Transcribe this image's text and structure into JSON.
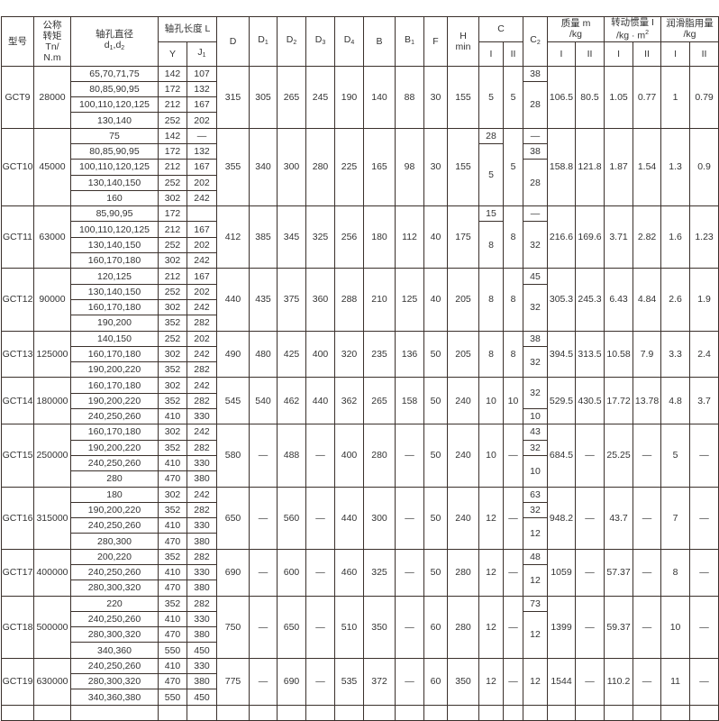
{
  "header": {
    "model": "型号",
    "torque": [
      "公称",
      "转矩",
      "Tn/",
      "N.m"
    ],
    "bore": {
      "title": "轴孔直径",
      "d": "d",
      "s1": "1",
      "comma": ",d",
      "s2": "2"
    },
    "bore_length": "轴孔长度 L",
    "Y": "Y",
    "J1": {
      "base": "J",
      "sub": "1"
    },
    "D": "D",
    "D1": {
      "base": "D",
      "sub": "1"
    },
    "D2": {
      "base": "D",
      "sub": "2"
    },
    "D3": {
      "base": "D",
      "sub": "3"
    },
    "D4": {
      "base": "D",
      "sub": "4"
    },
    "B": "B",
    "B1": {
      "base": "B",
      "sub": "1"
    },
    "F": "F",
    "H": [
      "H",
      "min"
    ],
    "C": "C",
    "C2": {
      "base": "C",
      "sub": "2"
    },
    "mass": [
      "质量 m",
      "/kg"
    ],
    "inertia": [
      "转动惯量 I",
      "/kg · m",
      "2"
    ],
    "grease": [
      "润滑脂用量",
      "/kg"
    ],
    "I": "I",
    "II": "II"
  },
  "rows": [
    {
      "model": "GCT9",
      "Tn": "28000",
      "bores": [
        [
          "65,70,71,75",
          "142",
          "107"
        ],
        [
          "80,85,90,95",
          "172",
          "132"
        ],
        [
          "100,110,120,125",
          "212",
          "167"
        ],
        [
          "130,140",
          "252",
          "202"
        ]
      ],
      "D": "315",
      "D1": "305",
      "D2": "265",
      "D3": "245",
      "D4": "190",
      "B": "140",
      "B1": "88",
      "F": "30",
      "H": "155",
      "CI": [
        [
          "5",
          4
        ]
      ],
      "CII": "5",
      "C2": [
        [
          "38",
          1
        ],
        [
          "28",
          3
        ]
      ],
      "mI": "106.5",
      "mII": "80.5",
      "iI": "1.05",
      "iII": "0.77",
      "gI": "1",
      "gII": "0.79"
    },
    {
      "model": "GCT10",
      "Tn": "45000",
      "bores": [
        [
          "75",
          "142",
          "—"
        ],
        [
          "80,85,90,95",
          "172",
          "132"
        ],
        [
          "100,110,120,125",
          "212",
          "167"
        ],
        [
          "130,140,150",
          "252",
          "202"
        ],
        [
          "160",
          "302",
          "242"
        ]
      ],
      "D": "355",
      "D1": "340",
      "D2": "300",
      "D3": "280",
      "D4": "225",
      "B": "165",
      "B1": "98",
      "F": "30",
      "H": "155",
      "CI": [
        [
          "28",
          1
        ],
        [
          "5",
          4
        ]
      ],
      "CII": "5",
      "C2": [
        [
          "—",
          1
        ],
        [
          "38",
          1
        ],
        [
          "28",
          3
        ]
      ],
      "mI": "158.8",
      "mII": "121.8",
      "iI": "1.87",
      "iII": "1.54",
      "gI": "1.3",
      "gII": "0.9"
    },
    {
      "model": "GCT11",
      "Tn": "63000",
      "bores": [
        [
          "85,90,95",
          "172",
          ""
        ],
        [
          "100,110,120,125",
          "212",
          "167"
        ],
        [
          "130,140,150",
          "252",
          "202"
        ],
        [
          "160,170,180",
          "302",
          "242"
        ]
      ],
      "D": "412",
      "D1": "385",
      "D2": "345",
      "D3": "325",
      "D4": "256",
      "B": "180",
      "B1": "112",
      "F": "40",
      "H": "175",
      "CI": [
        [
          "15",
          1
        ],
        [
          "8",
          3
        ]
      ],
      "CII": "8",
      "C2": [
        [
          "—",
          1
        ],
        [
          "32",
          3
        ]
      ],
      "mI": "216.6",
      "mII": "169.6",
      "iI": "3.71",
      "iII": "2.82",
      "gI": "1.6",
      "gII": "1.23"
    },
    {
      "model": "GCT12",
      "Tn": "90000",
      "bores": [
        [
          "120,125",
          "212",
          "167"
        ],
        [
          "130,140,150",
          "252",
          "202"
        ],
        [
          "160,170,180",
          "302",
          "242"
        ],
        [
          "190,200",
          "352",
          "282"
        ]
      ],
      "D": "440",
      "D1": "435",
      "D2": "375",
      "D3": "360",
      "D4": "288",
      "B": "210",
      "B1": "125",
      "F": "40",
      "H": "205",
      "CI": [
        [
          "8",
          4
        ]
      ],
      "CII": "8",
      "C2": [
        [
          "45",
          1
        ],
        [
          "32",
          3
        ]
      ],
      "mI": "305.3",
      "mII": "245.3",
      "iI": "6.43",
      "iII": "4.84",
      "gI": "2.6",
      "gII": "1.9"
    },
    {
      "model": "GCT13",
      "Tn": "125000",
      "bores": [
        [
          "140,150",
          "252",
          "202"
        ],
        [
          "160,170,180",
          "302",
          "242"
        ],
        [
          "190,200,220",
          "352",
          "282"
        ]
      ],
      "D": "490",
      "D1": "480",
      "D2": "425",
      "D3": "400",
      "D4": "320",
      "B": "235",
      "B1": "136",
      "F": "50",
      "H": "205",
      "CI": [
        [
          "8",
          3
        ]
      ],
      "CII": "8",
      "C2": [
        [
          "38",
          1
        ],
        [
          "32",
          2
        ]
      ],
      "mI": "394.5",
      "mII": "313.5",
      "iI": "10.58",
      "iII": "7.9",
      "gI": "3.3",
      "gII": "2.4"
    },
    {
      "model": "GCT14",
      "Tn": "180000",
      "bores": [
        [
          "160,170,180",
          "302",
          "242"
        ],
        [
          "190,200,220",
          "352",
          "282"
        ],
        [
          "240,250,260",
          "410",
          "330"
        ]
      ],
      "D": "545",
      "D1": "540",
      "D2": "462",
      "D3": "440",
      "D4": "362",
      "B": "265",
      "B1": "158",
      "F": "50",
      "H": "240",
      "CI": [
        [
          "10",
          3
        ]
      ],
      "CII": "10",
      "C2": [
        [
          "32",
          2
        ],
        [
          "10",
          1
        ]
      ],
      "mI": "529.5",
      "mII": "430.5",
      "iI": "17.72",
      "iII": "13.78",
      "gI": "4.8",
      "gII": "3.7"
    },
    {
      "model": "GCT15",
      "Tn": "250000",
      "bores": [
        [
          "160,170,180",
          "302",
          "242"
        ],
        [
          "190,200,220",
          "352",
          "282"
        ],
        [
          "240,250,260",
          "410",
          "330"
        ],
        [
          "280",
          "470",
          "380"
        ]
      ],
      "D": "580",
      "D1": "—",
      "D2": "488",
      "D3": "—",
      "D4": "400",
      "B": "280",
      "B1": "—",
      "F": "50",
      "H": "240",
      "CI": [
        [
          "10",
          4
        ]
      ],
      "CII": "—",
      "C2": [
        [
          "43",
          1
        ],
        [
          "32",
          1
        ],
        [
          "10",
          2
        ]
      ],
      "mI": "684.5",
      "mII": "—",
      "iI": "25.25",
      "iII": "—",
      "gI": "5",
      "gII": "—"
    },
    {
      "model": "GCT16",
      "Tn": "315000",
      "bores": [
        [
          "180",
          "302",
          "242"
        ],
        [
          "190,200,220",
          "352",
          "282"
        ],
        [
          "240,250,260",
          "410",
          "330"
        ],
        [
          "280,300",
          "470",
          "380"
        ]
      ],
      "D": "650",
      "D1": "—",
      "D2": "560",
      "D3": "—",
      "D4": "440",
      "B": "300",
      "B1": "—",
      "F": "50",
      "H": "240",
      "CI": [
        [
          "12",
          4
        ]
      ],
      "CII": "—",
      "C2": [
        [
          "63",
          1
        ],
        [
          "32",
          1
        ],
        [
          "12",
          2
        ]
      ],
      "mI": "948.2",
      "mII": "—",
      "iI": "43.7",
      "iII": "—",
      "gI": "7",
      "gII": "—"
    },
    {
      "model": "GCT17",
      "Tn": "400000",
      "bores": [
        [
          "200,220",
          "352",
          "282"
        ],
        [
          "240,250,260",
          "410",
          "330"
        ],
        [
          "280,300,320",
          "470",
          "380"
        ]
      ],
      "D": "690",
      "D1": "—",
      "D2": "600",
      "D3": "—",
      "D4": "460",
      "B": "325",
      "B1": "—",
      "F": "50",
      "H": "280",
      "CI": [
        [
          "12",
          3
        ]
      ],
      "CII": "—",
      "C2": [
        [
          "48",
          1
        ],
        [
          "12",
          2
        ]
      ],
      "mI": "1059",
      "mII": "—",
      "iI": "57.37",
      "iII": "—",
      "gI": "8",
      "gII": "—"
    },
    {
      "model": "GCT18",
      "Tn": "500000",
      "bores": [
        [
          "220",
          "352",
          "282"
        ],
        [
          "240,250,260",
          "410",
          "330"
        ],
        [
          "280,300,320",
          "470",
          "380"
        ],
        [
          "340,360",
          "550",
          "450"
        ]
      ],
      "D": "750",
      "D1": "—",
      "D2": "650",
      "D3": "—",
      "D4": "510",
      "B": "350",
      "B1": "—",
      "F": "60",
      "H": "280",
      "CI": [
        [
          "12",
          4
        ]
      ],
      "CII": "—",
      "C2": [
        [
          "73",
          1
        ],
        [
          "12",
          3
        ]
      ],
      "mI": "1399",
      "mII": "—",
      "iI": "59.37",
      "iII": "—",
      "gI": "10",
      "gII": "—"
    },
    {
      "model": "GCT19",
      "Tn": "630000",
      "bores": [
        [
          "240,250,260",
          "410",
          "330"
        ],
        [
          "280,300,320",
          "470",
          "380"
        ],
        [
          "340,360,380",
          "550",
          "450"
        ]
      ],
      "D": "775",
      "D1": "—",
      "D2": "690",
      "D3": "—",
      "D4": "535",
      "B": "372",
      "B1": "—",
      "F": "60",
      "H": "350",
      "CI": [
        [
          "12",
          3
        ]
      ],
      "CII": "—",
      "C2": [
        [
          "12",
          3
        ]
      ],
      "mI": "1544",
      "mII": "—",
      "iI": "110.2",
      "iII": "—",
      "gI": "11",
      "gII": "—"
    }
  ]
}
